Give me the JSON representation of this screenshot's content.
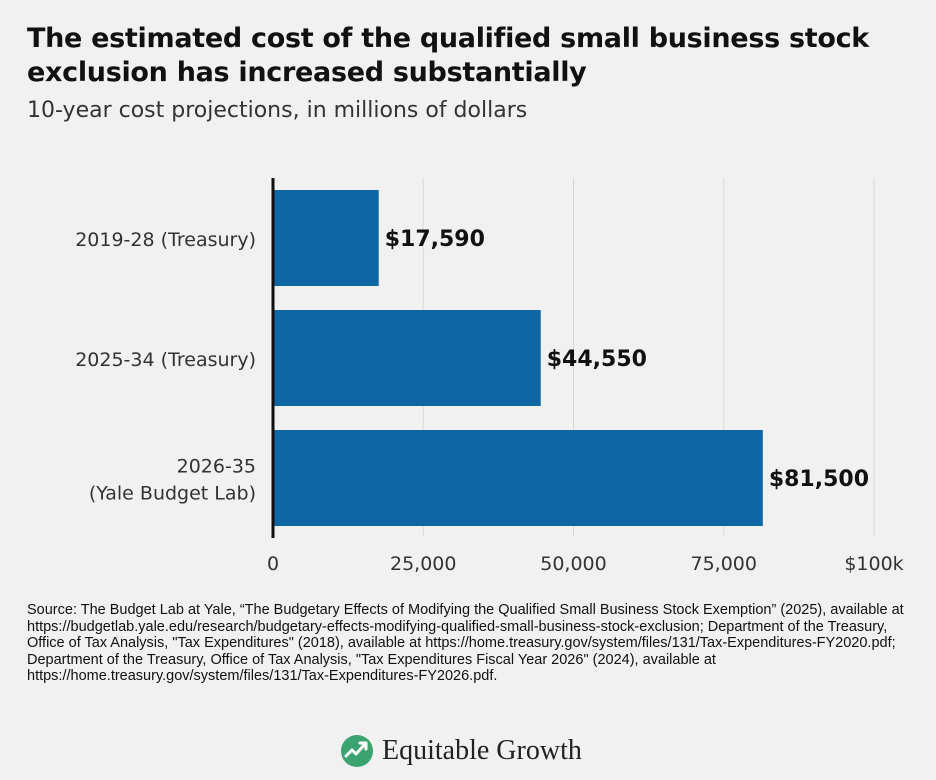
{
  "title": "The estimated cost of the qualified small business stock exclusion has increased substantially",
  "subtitle": "10-year cost projections, in millions of dollars",
  "source": "Source: The Budget Lab at Yale, “The Budgetary Effects of Modifying the Qualified Small Business Stock Exemption” (2025), available at https://budgetlab.yale.edu/research/budgetary-effects-modifying-qualified-small-business-stock-exclusion; Department of the Treasury, Office of Tax Analysis, \"Tax Expenditures\" (2018), available at https://home.treasury.gov/system/files/131/Tax-Expenditures-FY2020.pdf; Department of the Treasury, Office of Tax Analysis, \"Tax Expenditures Fiscal Year 2026\" (2024), available at https://home.treasury.gov/system/files/131/Tax-Expenditures-FY2026.pdf.",
  "logo_text": "Equitable Growth",
  "colors": {
    "bar": "#0e67a3",
    "grid": "#d9d9d9",
    "background": "#f1f1f1",
    "logo_green": "#3aa36f"
  },
  "chart_data": {
    "type": "bar",
    "orientation": "horizontal",
    "categories": [
      [
        "2019-28 (Treasury)"
      ],
      [
        "2025-34 (Treasury)"
      ],
      [
        "2026-35",
        "(Yale Budget Lab)"
      ]
    ],
    "values": [
      17590,
      44550,
      81500
    ],
    "data_labels": [
      "$17,590",
      "$44,550",
      "$81,500"
    ],
    "xlim": [
      0,
      100000
    ],
    "ticks": [
      0,
      25000,
      50000,
      75000,
      100000
    ],
    "tick_labels": [
      "0",
      "25,000",
      "50,000",
      "75,000",
      "$100k"
    ],
    "grid": true
  }
}
